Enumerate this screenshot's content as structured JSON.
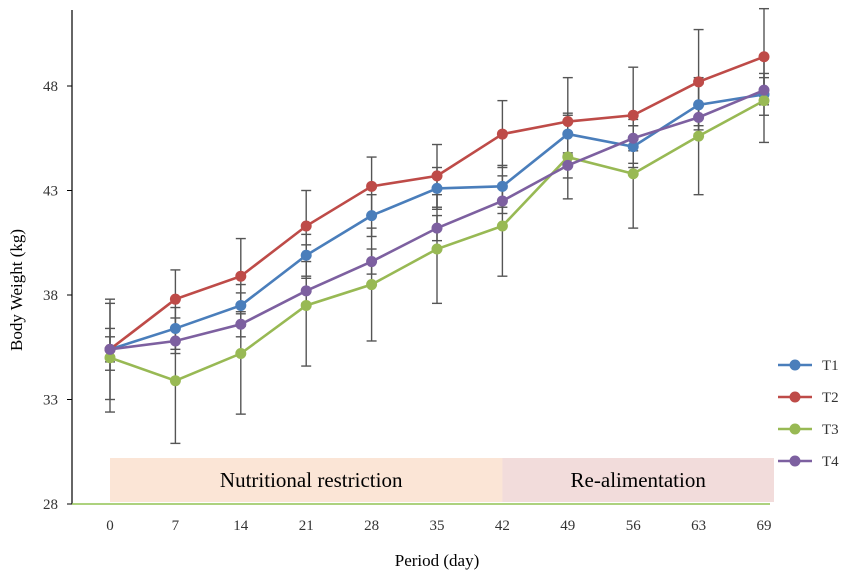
{
  "chart_data": {
    "type": "line",
    "xlabel": "Period (day)",
    "ylabel": "Body Weight  (kg)",
    "categories": [
      "0",
      "7",
      "14",
      "21",
      "28",
      "35",
      "42",
      "49",
      "56",
      "63",
      "69"
    ],
    "ylim": [
      28,
      52
    ],
    "yticks": [
      "28",
      "33",
      "38",
      "43",
      "48"
    ],
    "grid": false,
    "legend_position": "right",
    "phases": [
      {
        "label": "Nutritional restriction",
        "from": "0",
        "to": "42",
        "color": "#fbe5d6"
      },
      {
        "label": "Re-alimentation",
        "from": "42",
        "to": "69",
        "color": "#f2dcdb"
      }
    ],
    "series": [
      {
        "name": "T1",
        "color": "#4a7ebb",
        "values": [
          35.4,
          36.4,
          37.5,
          39.9,
          41.8,
          43.1,
          43.2,
          45.7,
          45.1,
          47.1,
          47.6
        ],
        "errors": [
          1.0,
          1.0,
          1.0,
          1.0,
          1.0,
          1.0,
          1.0,
          1.0,
          1.0,
          1.0,
          1.0
        ]
      },
      {
        "name": "T2",
        "color": "#be4b48",
        "values": [
          35.4,
          37.8,
          38.9,
          41.3,
          43.2,
          43.7,
          45.7,
          46.3,
          46.6,
          48.2,
          49.4
        ],
        "errors": [
          2.4,
          1.4,
          1.8,
          1.7,
          1.4,
          1.5,
          1.6,
          2.1,
          2.3,
          2.5,
          2.3
        ]
      },
      {
        "name": "T3",
        "color": "#98b954",
        "values": [
          35.0,
          33.9,
          35.2,
          37.5,
          38.5,
          40.2,
          41.3,
          44.6,
          43.8,
          45.6,
          47.3
        ],
        "errors": [
          2.6,
          3.0,
          2.9,
          2.9,
          2.7,
          2.6,
          2.4,
          2.0,
          2.6,
          2.8,
          2.0
        ]
      },
      {
        "name": "T4",
        "color": "#7d60a0",
        "values": [
          35.4,
          35.8,
          36.6,
          38.2,
          39.6,
          41.2,
          42.5,
          44.2,
          45.5,
          46.5,
          47.8
        ],
        "errors": [
          0.6,
          0.6,
          0.6,
          0.6,
          0.6,
          0.6,
          0.6,
          0.6,
          0.6,
          0.6,
          0.6
        ]
      }
    ]
  }
}
